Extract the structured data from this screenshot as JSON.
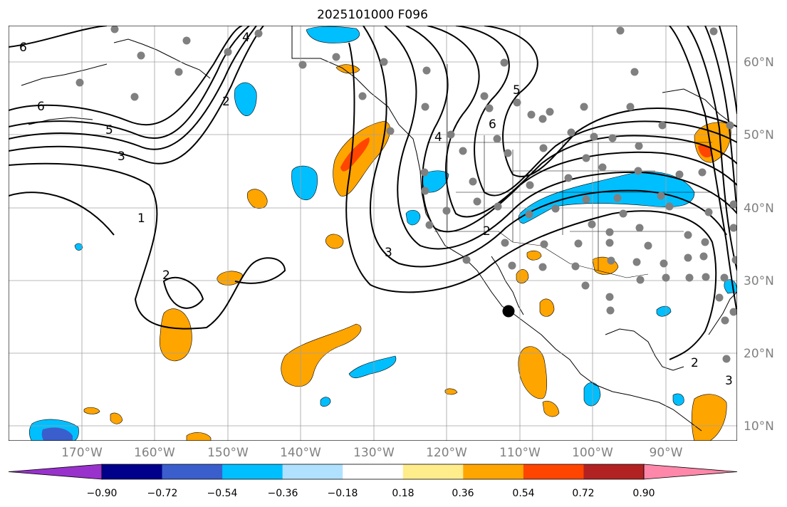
{
  "title": "2025101000 F096",
  "lat_labels": [
    "60°N",
    "50°N",
    "40°N",
    "30°N",
    "20°N",
    "10°N"
  ],
  "lon_labels": [
    "170°W",
    "160°W",
    "150°W",
    "140°W",
    "130°W",
    "120°W",
    "110°W",
    "100°W",
    "90°W"
  ],
  "colorbar": {
    "ticks": [
      "−0.90",
      "−0.72",
      "−0.54",
      "−0.36",
      "−0.18",
      "0.18",
      "0.36",
      "0.54",
      "0.72",
      "0.90"
    ],
    "colors": [
      "#9932cc",
      "#00008b",
      "#3a5fcd",
      "#00bfff",
      "#b0e2ff",
      "#ffffff",
      "#ffec8b",
      "#ffa500",
      "#ff4500",
      "#b22222",
      "#ff88aa"
    ]
  },
  "contour_labels": [
    "6",
    "6",
    "5",
    "3",
    "1",
    "2",
    "2",
    "4",
    "2",
    "3",
    "4",
    "5",
    "6",
    "2",
    "3"
  ],
  "colors": {
    "contour": "#000000",
    "coast": "#000000",
    "grid": "#a0a0a0",
    "station": "#808080"
  }
}
